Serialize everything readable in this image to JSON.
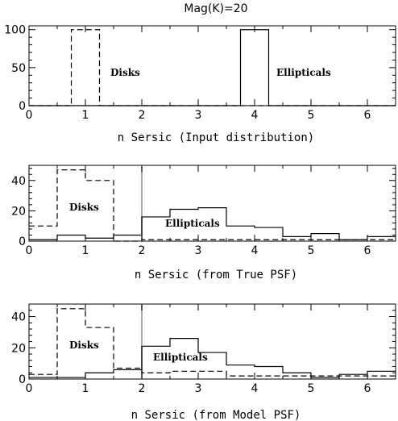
{
  "figure_title": "Mag(K)=20",
  "chart_data": [
    {
      "type": "histogram",
      "xlabel": "n Sersic (Input distribution)",
      "ylabel": "",
      "xlim": [
        0,
        6.5
      ],
      "ylim": [
        0,
        105
      ],
      "xticks": [
        "0",
        "1",
        "2",
        "3",
        "4",
        "5",
        "6"
      ],
      "yticks": [
        0,
        50,
        100
      ],
      "bin_edges": [
        0,
        0.5,
        0.75,
        1.25,
        1.5,
        2,
        2.5,
        3,
        3.5,
        3.75,
        4.25,
        4.5,
        5,
        5.5,
        6,
        6.5
      ],
      "series": [
        {
          "name": "Disks",
          "style": "dashed",
          "values": [
            0,
            0,
            100,
            0,
            0,
            0,
            0,
            0,
            0,
            0,
            0,
            0,
            0,
            0,
            0
          ]
        },
        {
          "name": "Ellipticals",
          "style": "solid",
          "values": [
            0,
            0,
            0,
            0,
            0,
            0,
            0,
            0,
            0,
            100,
            0,
            0,
            0,
            0,
            0
          ]
        }
      ],
      "annotations": [
        "Disks",
        "Ellipticals"
      ],
      "vline": null
    },
    {
      "type": "histogram",
      "xlabel": "n Sersic (from True PSF)",
      "ylabel": "",
      "xlim": [
        0,
        6.5
      ],
      "ylim": [
        0,
        50
      ],
      "xticks": [
        "0",
        "1",
        "2",
        "3",
        "4",
        "5",
        "6"
      ],
      "yticks": [
        0,
        20,
        40
      ],
      "bin_edges": [
        0,
        0.5,
        1,
        1.5,
        2,
        2.5,
        3,
        3.5,
        4,
        4.5,
        5,
        5.5,
        6,
        6.5
      ],
      "series": [
        {
          "name": "Disks",
          "style": "dashed",
          "values": [
            10,
            47,
            40,
            0,
            1,
            1,
            1,
            1,
            1,
            1,
            1,
            1,
            1
          ]
        },
        {
          "name": "Ellipticals",
          "style": "solid",
          "values": [
            1,
            4,
            2,
            4,
            16,
            21,
            22,
            10,
            9,
            3,
            5,
            1,
            3
          ]
        }
      ],
      "annotations": [
        "Disks",
        "Ellipticals"
      ],
      "vline": 2
    },
    {
      "type": "histogram",
      "xlabel": "n Sersic (from Model PSF)",
      "ylabel": "",
      "xlim": [
        0,
        6.5
      ],
      "ylim": [
        0,
        48
      ],
      "xticks": [
        "0",
        "1",
        "2",
        "3",
        "4",
        "5",
        "6"
      ],
      "yticks": [
        0,
        20,
        40
      ],
      "bin_edges": [
        0,
        0.5,
        1,
        1.5,
        2,
        2.5,
        3,
        3.5,
        4,
        4.5,
        5,
        5.5,
        6,
        6.5
      ],
      "series": [
        {
          "name": "Disks",
          "style": "dashed",
          "values": [
            3,
            45,
            33,
            7,
            4,
            5,
            5,
            2,
            2,
            2,
            2,
            2,
            2
          ]
        },
        {
          "name": "Ellipticals",
          "style": "solid",
          "values": [
            1,
            1,
            4,
            6,
            21,
            26,
            17,
            9,
            8,
            4,
            1,
            3,
            5
          ]
        }
      ],
      "annotations": [
        "Disks",
        "Ellipticals"
      ],
      "vline": 2
    }
  ]
}
